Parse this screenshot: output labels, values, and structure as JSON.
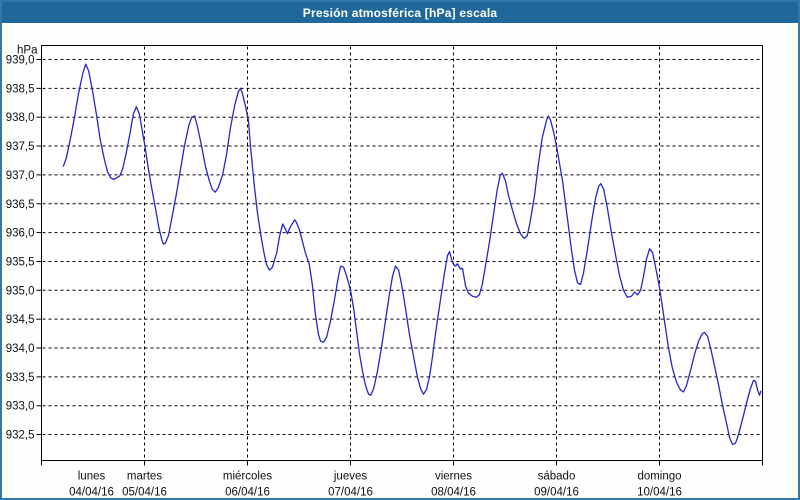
{
  "window": {
    "title": "Presión atmosférica [hPa] escala"
  },
  "colors": {
    "title_bar_bg": "#1f689b",
    "title_text": "#ffffff",
    "outer_border": "#3578a8",
    "plot_bg": "#ffffff",
    "plot_border": "#000000",
    "grid": "#000000",
    "tick_text": "#101010",
    "line": "#2626c9",
    "canvas_bg": "#fdfffd"
  },
  "chart_data": {
    "type": "line",
    "title": "Presión atmosférica [hPa] escala",
    "ylabel": "hPa",
    "legend_position": "none",
    "grid": "dashed",
    "y_axis": {
      "min": 932.5,
      "max": 939.0,
      "tick_step": 0.5,
      "tick_labels": [
        "939,0",
        "938,5",
        "938,0",
        "937,5",
        "937,0",
        "936,5",
        "936,0",
        "935,5",
        "935,0",
        "934,5",
        "934,0",
        "933,5",
        "933,0",
        "932,5"
      ]
    },
    "x_axis": {
      "span_days": 7,
      "days": [
        {
          "name": "lunes",
          "date": "04/04/16"
        },
        {
          "name": "martes",
          "date": "05/04/16"
        },
        {
          "name": "miércoles",
          "date": "06/04/16"
        },
        {
          "name": "jueves",
          "date": "07/04/16"
        },
        {
          "name": "viernes",
          "date": "08/04/16"
        },
        {
          "name": "sábado",
          "date": "09/04/16"
        },
        {
          "name": "domingo",
          "date": "10/04/16"
        }
      ]
    },
    "series": [
      {
        "name": "Presión atmosférica",
        "unit": "hPa",
        "x_unit": "hours since lunes 04/04/16 00:00",
        "points": [
          [
            5.1,
            937.15
          ],
          [
            5.8,
            937.3
          ],
          [
            6.8,
            937.65
          ],
          [
            7.7,
            938.0
          ],
          [
            8.6,
            938.4
          ],
          [
            9.6,
            938.75
          ],
          [
            10.3,
            938.92
          ],
          [
            11.0,
            938.8
          ],
          [
            11.9,
            938.45
          ],
          [
            12.8,
            938.05
          ],
          [
            13.7,
            937.6
          ],
          [
            14.7,
            937.25
          ],
          [
            15.4,
            937.05
          ],
          [
            16.1,
            936.95
          ],
          [
            16.8,
            936.92
          ],
          [
            17.5,
            936.95
          ],
          [
            18.2,
            936.98
          ],
          [
            18.9,
            937.1
          ],
          [
            19.8,
            937.4
          ],
          [
            20.7,
            937.75
          ],
          [
            21.4,
            938.05
          ],
          [
            22.1,
            938.18
          ],
          [
            22.8,
            938.05
          ],
          [
            23.5,
            937.75
          ],
          [
            24.0,
            937.55
          ],
          [
            24.7,
            937.2
          ],
          [
            25.6,
            936.8
          ],
          [
            26.6,
            936.4
          ],
          [
            27.3,
            936.1
          ],
          [
            28.0,
            935.88
          ],
          [
            28.4,
            935.8
          ],
          [
            28.9,
            935.82
          ],
          [
            29.6,
            935.95
          ],
          [
            30.5,
            936.3
          ],
          [
            31.5,
            936.7
          ],
          [
            32.4,
            937.1
          ],
          [
            33.3,
            937.5
          ],
          [
            34.3,
            937.85
          ],
          [
            35.0,
            938.0
          ],
          [
            35.7,
            938.02
          ],
          [
            36.3,
            937.85
          ],
          [
            37.3,
            937.5
          ],
          [
            38.2,
            937.15
          ],
          [
            39.1,
            936.9
          ],
          [
            39.8,
            936.75
          ],
          [
            40.5,
            936.7
          ],
          [
            41.2,
            936.78
          ],
          [
            42.2,
            937.0
          ],
          [
            43.1,
            937.35
          ],
          [
            44.0,
            937.8
          ],
          [
            45.0,
            938.2
          ],
          [
            45.9,
            938.45
          ],
          [
            46.4,
            938.5
          ],
          [
            46.8,
            938.42
          ],
          [
            47.5,
            938.2
          ],
          [
            48.2,
            937.95
          ],
          [
            48.7,
            937.5
          ],
          [
            49.2,
            937.1
          ],
          [
            49.6,
            936.8
          ],
          [
            50.3,
            936.35
          ],
          [
            51.0,
            936.0
          ],
          [
            51.7,
            935.7
          ],
          [
            52.4,
            935.45
          ],
          [
            53.1,
            935.35
          ],
          [
            53.8,
            935.4
          ],
          [
            54.8,
            935.65
          ],
          [
            55.5,
            935.95
          ],
          [
            56.2,
            936.15
          ],
          [
            56.9,
            936.05
          ],
          [
            57.3,
            935.98
          ],
          [
            58.0,
            936.1
          ],
          [
            59.0,
            936.22
          ],
          [
            59.4,
            936.18
          ],
          [
            60.1,
            936.05
          ],
          [
            60.8,
            935.85
          ],
          [
            61.5,
            935.65
          ],
          [
            62.4,
            935.45
          ],
          [
            63.1,
            935.1
          ],
          [
            63.8,
            934.6
          ],
          [
            64.5,
            934.25
          ],
          [
            65.0,
            934.12
          ],
          [
            65.7,
            934.1
          ],
          [
            66.4,
            934.18
          ],
          [
            67.3,
            934.45
          ],
          [
            68.3,
            934.85
          ],
          [
            69.2,
            935.25
          ],
          [
            69.7,
            935.42
          ],
          [
            70.4,
            935.4
          ],
          [
            71.1,
            935.25
          ],
          [
            72.0,
            935.0
          ],
          [
            72.7,
            934.7
          ],
          [
            73.4,
            934.3
          ],
          [
            74.1,
            933.9
          ],
          [
            74.8,
            933.6
          ],
          [
            75.5,
            933.35
          ],
          [
            76.2,
            933.2
          ],
          [
            76.7,
            933.18
          ],
          [
            77.4,
            933.3
          ],
          [
            78.3,
            933.6
          ],
          [
            79.2,
            934.0
          ],
          [
            80.2,
            934.5
          ],
          [
            81.1,
            934.95
          ],
          [
            81.8,
            935.25
          ],
          [
            82.5,
            935.42
          ],
          [
            83.2,
            935.35
          ],
          [
            83.9,
            935.1
          ],
          [
            84.8,
            934.7
          ],
          [
            85.7,
            934.25
          ],
          [
            86.7,
            933.85
          ],
          [
            87.6,
            933.5
          ],
          [
            88.3,
            933.3
          ],
          [
            89.0,
            933.2
          ],
          [
            89.7,
            933.28
          ],
          [
            90.4,
            933.5
          ],
          [
            91.1,
            933.85
          ],
          [
            92.0,
            934.35
          ],
          [
            93.0,
            934.85
          ],
          [
            93.9,
            935.3
          ],
          [
            94.6,
            935.6
          ],
          [
            95.1,
            935.67
          ],
          [
            95.5,
            935.55
          ],
          [
            96.0,
            935.45
          ],
          [
            96.5,
            935.42
          ],
          [
            96.9,
            935.46
          ],
          [
            97.6,
            935.37
          ],
          [
            98.1,
            935.38
          ],
          [
            98.8,
            935.08
          ],
          [
            99.5,
            934.95
          ],
          [
            100.4,
            934.9
          ],
          [
            101.3,
            934.88
          ],
          [
            102.0,
            934.92
          ],
          [
            102.7,
            935.1
          ],
          [
            103.5,
            935.45
          ],
          [
            104.4,
            935.85
          ],
          [
            105.3,
            936.3
          ],
          [
            106.2,
            936.75
          ],
          [
            106.9,
            937.0
          ],
          [
            107.4,
            937.03
          ],
          [
            108.1,
            936.9
          ],
          [
            108.8,
            936.65
          ],
          [
            109.7,
            936.4
          ],
          [
            110.7,
            936.15
          ],
          [
            111.6,
            935.98
          ],
          [
            112.5,
            935.9
          ],
          [
            113.2,
            935.95
          ],
          [
            113.9,
            936.2
          ],
          [
            114.9,
            936.65
          ],
          [
            115.8,
            937.2
          ],
          [
            116.7,
            937.65
          ],
          [
            117.7,
            937.95
          ],
          [
            118.1,
            938.02
          ],
          [
            118.6,
            937.95
          ],
          [
            119.3,
            937.75
          ],
          [
            120.0,
            937.5
          ],
          [
            120.7,
            937.2
          ],
          [
            121.4,
            936.9
          ],
          [
            122.1,
            936.5
          ],
          [
            122.8,
            936.1
          ],
          [
            123.5,
            935.7
          ],
          [
            124.2,
            935.35
          ],
          [
            124.9,
            935.13
          ],
          [
            125.6,
            935.1
          ],
          [
            126.3,
            935.3
          ],
          [
            127.2,
            935.7
          ],
          [
            128.2,
            936.2
          ],
          [
            129.1,
            936.6
          ],
          [
            129.8,
            936.8
          ],
          [
            130.3,
            936.85
          ],
          [
            131.0,
            936.75
          ],
          [
            131.9,
            936.4
          ],
          [
            132.8,
            936.0
          ],
          [
            133.8,
            935.6
          ],
          [
            134.7,
            935.25
          ],
          [
            135.6,
            935.0
          ],
          [
            136.5,
            934.88
          ],
          [
            137.5,
            934.9
          ],
          [
            138.2,
            934.97
          ],
          [
            138.9,
            934.92
          ],
          [
            139.6,
            935.0
          ],
          [
            140.3,
            935.25
          ],
          [
            141.0,
            935.55
          ],
          [
            141.7,
            935.72
          ],
          [
            142.4,
            935.65
          ],
          [
            143.1,
            935.4
          ],
          [
            144.0,
            935.05
          ],
          [
            144.7,
            934.7
          ],
          [
            145.4,
            934.35
          ],
          [
            146.1,
            934.0
          ],
          [
            147.0,
            933.65
          ],
          [
            148.0,
            933.4
          ],
          [
            148.9,
            933.27
          ],
          [
            149.6,
            933.24
          ],
          [
            150.3,
            933.35
          ],
          [
            151.2,
            933.6
          ],
          [
            152.2,
            933.9
          ],
          [
            153.1,
            934.12
          ],
          [
            154.0,
            934.25
          ],
          [
            154.5,
            934.27
          ],
          [
            155.2,
            934.2
          ],
          [
            155.9,
            934.0
          ],
          [
            156.8,
            933.7
          ],
          [
            157.8,
            933.35
          ],
          [
            158.7,
            933.0
          ],
          [
            159.6,
            932.7
          ],
          [
            160.3,
            932.45
          ],
          [
            161.0,
            932.33
          ],
          [
            161.7,
            932.35
          ],
          [
            162.4,
            932.5
          ],
          [
            163.3,
            932.75
          ],
          [
            164.3,
            933.05
          ],
          [
            165.2,
            933.3
          ],
          [
            165.9,
            933.44
          ],
          [
            166.4,
            933.42
          ],
          [
            166.8,
            933.28
          ],
          [
            167.3,
            933.18
          ],
          [
            167.6,
            933.25
          ]
        ]
      }
    ]
  }
}
